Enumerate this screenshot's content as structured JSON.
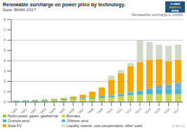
{
  "chart_data": {
    "type": "bar",
    "stacked": true,
    "title": "Renewable surcharge on power price by technology.",
    "subtitle": "Data: BMWi 2017.",
    "ylabel": "Renewables surcharge in ct/kWh",
    "annotations": [
      "CLEAN",
      "ENERGY",
      "WIRE",
      "CC BY 4.0"
    ],
    "categories": [
      "2000",
      "2001",
      "2002",
      "2003",
      "2004",
      "2005",
      "2006",
      "2007",
      "2008",
      "2009",
      "2010",
      "2011",
      "2012",
      "2013",
      "2014",
      "2015",
      "2016",
      "2017"
    ],
    "series": [
      {
        "name": "Hydro power, gases, geothermal",
        "color": "#9dc63f",
        "values": [
          0.05,
          0.05,
          0.06,
          0.06,
          0.07,
          0.08,
          0.09,
          0.1,
          0.1,
          0.1,
          0.09,
          0.1,
          0.1,
          0.1,
          0.1,
          0.09,
          0.09,
          0.09
        ]
      },
      {
        "name": "Biomass",
        "color": "#c8d84a",
        "values": [
          0.03,
          0.04,
          0.05,
          0.06,
          0.09,
          0.11,
          0.14,
          0.19,
          0.24,
          0.31,
          0.38,
          0.46,
          0.56,
          0.6,
          0.65,
          0.68,
          0.68,
          0.68
        ]
      },
      {
        "name": "Onshore wind",
        "color": "#48b8d0",
        "values": [
          0.05,
          0.07,
          0.07,
          0.08,
          0.08,
          0.09,
          0.1,
          0.1,
          0.12,
          0.13,
          0.18,
          0.22,
          0.28,
          0.32,
          0.4,
          0.47,
          0.5,
          0.55
        ]
      },
      {
        "name": "Offshore wind",
        "color": "#6baed6",
        "values": [
          0.0,
          0.0,
          0.0,
          0.0,
          0.0,
          0.0,
          0.0,
          0.0,
          0.0,
          0.0,
          0.01,
          0.02,
          0.04,
          0.08,
          0.16,
          0.32,
          0.4,
          0.55
        ]
      },
      {
        "name": "Solar PV",
        "color": "#f5a800",
        "values": [
          0.01,
          0.01,
          0.02,
          0.03,
          0.06,
          0.11,
          0.19,
          0.32,
          0.54,
          0.87,
          1.5,
          2.0,
          2.5,
          2.8,
          2.8,
          2.6,
          2.3,
          2.2
        ]
      },
      {
        "name": "Liquidity reserve, cost compensation, other costs",
        "color": "#d0d8c8",
        "values": [
          0.0,
          0.0,
          0.0,
          0.0,
          0.0,
          0.0,
          0.0,
          0.0,
          0.0,
          0.0,
          0.4,
          0.3,
          0.3,
          2.1,
          1.7,
          1.4,
          1.5,
          1.5
        ]
      }
    ],
    "ylim": [
      0,
      8
    ],
    "yticks": [
      0,
      1,
      2,
      3,
      4,
      5,
      6,
      7,
      8
    ],
    "grid": true,
    "legend": "bottom"
  }
}
